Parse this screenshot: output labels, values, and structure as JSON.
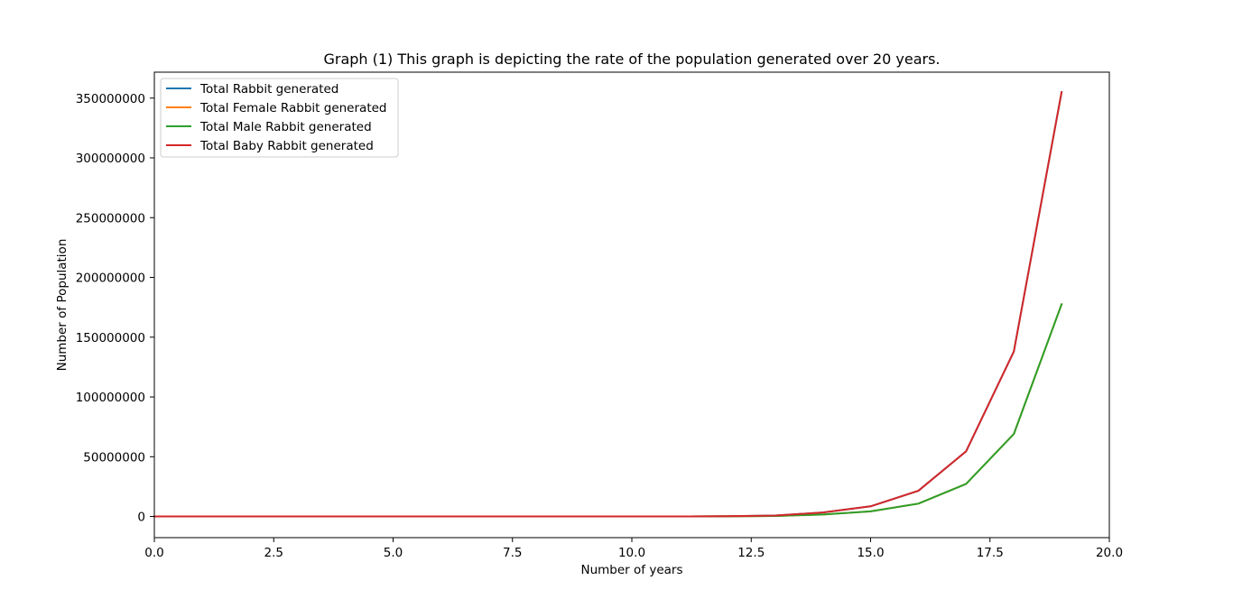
{
  "chart_data": {
    "type": "line",
    "title": "Graph (1) This graph is depicting the rate of the population generated over 20 years.",
    "xlabel": "Number of years",
    "ylabel": "Number of Population",
    "xlim": [
      0,
      20
    ],
    "ylim": [
      -17700000,
      371700000
    ],
    "x_ticks": [
      0,
      2.5,
      5,
      7.5,
      10,
      12.5,
      15,
      17.5,
      20
    ],
    "x_tick_labels": [
      "0.0",
      "2.5",
      "5.0",
      "7.5",
      "10.0",
      "12.5",
      "15.0",
      "17.5",
      "20.0"
    ],
    "y_ticks": [
      0,
      50000000,
      100000000,
      150000000,
      200000000,
      250000000,
      300000000,
      350000000
    ],
    "y_tick_labels": [
      "0",
      "50000000",
      "100000000",
      "150000000",
      "200000000",
      "250000000",
      "300000000",
      "350000000"
    ],
    "grid": false,
    "legend_position": "top-left",
    "x": [
      0,
      1,
      2,
      3,
      4,
      5,
      6,
      7,
      8,
      9,
      10,
      11,
      12,
      13,
      14,
      15,
      16,
      17,
      18,
      19
    ],
    "series": [
      {
        "name": "Total Rabbit generated",
        "color": "#1f77b4",
        "values": [
          2,
          4,
          6,
          14,
          30,
          58,
          114,
          222,
          438,
          860,
          1690,
          39700,
          200000,
          800000,
          3300000,
          8500000,
          21500000,
          54500000,
          138000000,
          355000000
        ]
      },
      {
        "name": "Total Female Rabbit generated",
        "color": "#ff7f0e",
        "values": [
          1,
          2,
          3,
          7,
          15,
          29,
          57,
          111,
          219,
          430,
          845,
          19850,
          100000,
          400000,
          1650000,
          4250000,
          10750000,
          27250000,
          69000000,
          177500000
        ]
      },
      {
        "name": "Total Male Rabbit generated",
        "color": "#2ca02c",
        "values": [
          1,
          2,
          3,
          7,
          15,
          29,
          57,
          111,
          219,
          430,
          845,
          19850,
          100000,
          400000,
          1650000,
          4250000,
          10750000,
          27250000,
          69000000,
          177500000
        ]
      },
      {
        "name": "Total Baby Rabbit generated",
        "color": "#d62728",
        "values": [
          2,
          4,
          6,
          14,
          30,
          58,
          114,
          222,
          438,
          860,
          1690,
          39700,
          200000,
          800000,
          3300000,
          8500000,
          21500000,
          54500000,
          138000000,
          355000000
        ]
      }
    ]
  }
}
